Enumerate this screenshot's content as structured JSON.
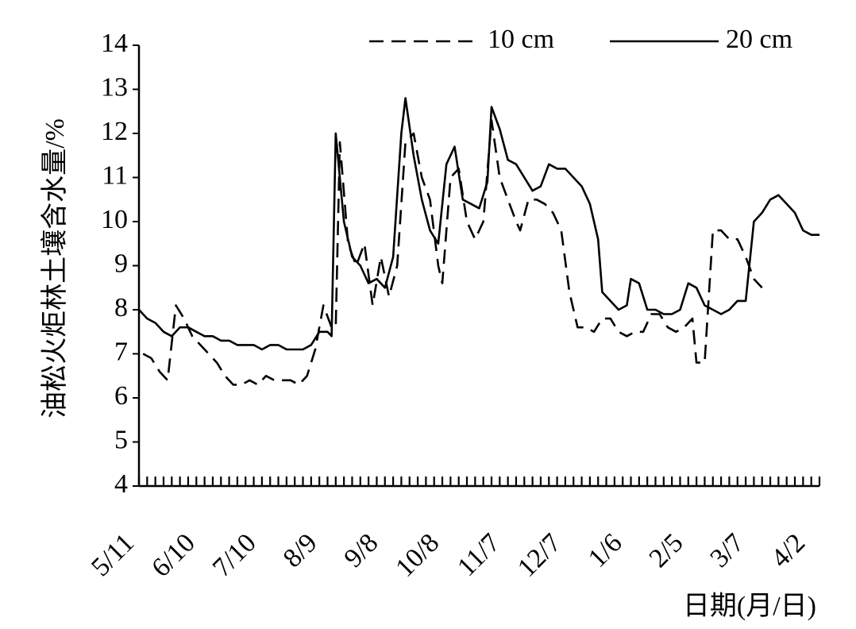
{
  "chart_data": {
    "type": "line",
    "title": "",
    "xlabel": "日期(月/日)",
    "ylabel": "油松火炬林土壤含水量/%",
    "ylim": [
      4,
      14
    ],
    "yticks": [
      "4",
      "5",
      "6",
      "7",
      "8",
      "9",
      "10",
      "11",
      "12",
      "13",
      "14"
    ],
    "xtick_labels": [
      "5/11",
      "6/10",
      "7/10",
      "8/9",
      "9/8",
      "10/8",
      "11/7",
      "12/7",
      "1/6",
      "2/5",
      "3/7",
      "4/2"
    ],
    "grid": false,
    "legend_position": "top",
    "series": [
      {
        "name": "10 cm",
        "style": "dashed",
        "color": "#000000",
        "points": [
          [
            1,
            7.0
          ],
          [
            3,
            6.9
          ],
          [
            5,
            6.6
          ],
          [
            7,
            6.4
          ],
          [
            9,
            8.1
          ],
          [
            11,
            7.8
          ],
          [
            13,
            7.4
          ],
          [
            15,
            7.2
          ],
          [
            17,
            7.0
          ],
          [
            19,
            6.8
          ],
          [
            21,
            6.5
          ],
          [
            23,
            6.3
          ],
          [
            25,
            6.3
          ],
          [
            27,
            6.4
          ],
          [
            29,
            6.3
          ],
          [
            31,
            6.5
          ],
          [
            33,
            6.4
          ],
          [
            35,
            6.4
          ],
          [
            37,
            6.4
          ],
          [
            39,
            6.3
          ],
          [
            41,
            6.5
          ],
          [
            43,
            7.1
          ],
          [
            45,
            8.1
          ],
          [
            47,
            7.6
          ],
          [
            48,
            7.6
          ],
          [
            49,
            11.8
          ],
          [
            51,
            9.5
          ],
          [
            53,
            9.0
          ],
          [
            55,
            9.5
          ],
          [
            57,
            8.1
          ],
          [
            59,
            9.2
          ],
          [
            61,
            8.3
          ],
          [
            63,
            9.0
          ],
          [
            65,
            11.8
          ],
          [
            67,
            12.0
          ],
          [
            69,
            11.0
          ],
          [
            71,
            10.5
          ],
          [
            73,
            9.0
          ],
          [
            74,
            8.6
          ],
          [
            76,
            11.0
          ],
          [
            78,
            11.2
          ],
          [
            80,
            10.0
          ],
          [
            82,
            9.6
          ],
          [
            84,
            10.0
          ],
          [
            86,
            12.3
          ],
          [
            88,
            11.0
          ],
          [
            90,
            10.5
          ],
          [
            92,
            10.0
          ],
          [
            93,
            9.8
          ],
          [
            95,
            10.5
          ],
          [
            97,
            10.5
          ],
          [
            99,
            10.4
          ],
          [
            101,
            10.2
          ],
          [
            103,
            9.8
          ],
          [
            105,
            8.4
          ],
          [
            107,
            7.6
          ],
          [
            109,
            7.6
          ],
          [
            111,
            7.5
          ],
          [
            113,
            7.8
          ],
          [
            115,
            7.8
          ],
          [
            117,
            7.5
          ],
          [
            119,
            7.4
          ],
          [
            121,
            7.5
          ],
          [
            123,
            7.5
          ],
          [
            125,
            7.9
          ],
          [
            127,
            7.9
          ],
          [
            129,
            7.6
          ],
          [
            131,
            7.5
          ],
          [
            133,
            7.6
          ],
          [
            135,
            7.8
          ],
          [
            136,
            6.8
          ],
          [
            138,
            6.8
          ],
          [
            140,
            9.8
          ],
          [
            142,
            9.8
          ],
          [
            144,
            9.6
          ],
          [
            146,
            9.6
          ],
          [
            148,
            9.2
          ],
          [
            150,
            8.7
          ],
          [
            152,
            8.5
          ]
        ]
      },
      {
        "name": "20 cm",
        "style": "solid",
        "color": "#000000",
        "points": [
          [
            0,
            8.0
          ],
          [
            2,
            7.8
          ],
          [
            4,
            7.7
          ],
          [
            6,
            7.5
          ],
          [
            8,
            7.4
          ],
          [
            10,
            7.6
          ],
          [
            12,
            7.6
          ],
          [
            14,
            7.5
          ],
          [
            16,
            7.4
          ],
          [
            18,
            7.4
          ],
          [
            20,
            7.3
          ],
          [
            22,
            7.3
          ],
          [
            24,
            7.2
          ],
          [
            26,
            7.2
          ],
          [
            28,
            7.2
          ],
          [
            30,
            7.1
          ],
          [
            32,
            7.2
          ],
          [
            34,
            7.2
          ],
          [
            36,
            7.1
          ],
          [
            38,
            7.1
          ],
          [
            40,
            7.1
          ],
          [
            42,
            7.2
          ],
          [
            44,
            7.5
          ],
          [
            46,
            7.5
          ],
          [
            47,
            7.4
          ],
          [
            48,
            12.0
          ],
          [
            50,
            10.0
          ],
          [
            52,
            9.2
          ],
          [
            54,
            9.0
          ],
          [
            56,
            8.6
          ],
          [
            58,
            8.7
          ],
          [
            60,
            8.5
          ],
          [
            62,
            9.2
          ],
          [
            64,
            12.0
          ],
          [
            65,
            12.8
          ],
          [
            67,
            11.5
          ],
          [
            69,
            10.5
          ],
          [
            71,
            9.8
          ],
          [
            73,
            9.5
          ],
          [
            75,
            11.3
          ],
          [
            77,
            11.7
          ],
          [
            79,
            10.5
          ],
          [
            81,
            10.4
          ],
          [
            83,
            10.3
          ],
          [
            85,
            10.9
          ],
          [
            86,
            12.6
          ],
          [
            88,
            12.1
          ],
          [
            90,
            11.4
          ],
          [
            92,
            11.3
          ],
          [
            94,
            11.0
          ],
          [
            96,
            10.7
          ],
          [
            98,
            10.8
          ],
          [
            100,
            11.3
          ],
          [
            102,
            11.2
          ],
          [
            104,
            11.2
          ],
          [
            106,
            11.0
          ],
          [
            108,
            10.8
          ],
          [
            110,
            10.4
          ],
          [
            112,
            9.6
          ],
          [
            113,
            8.4
          ],
          [
            115,
            8.2
          ],
          [
            117,
            8.0
          ],
          [
            119,
            8.1
          ],
          [
            120,
            8.7
          ],
          [
            122,
            8.6
          ],
          [
            124,
            8.0
          ],
          [
            126,
            8.0
          ],
          [
            128,
            7.9
          ],
          [
            130,
            7.9
          ],
          [
            132,
            8.0
          ],
          [
            134,
            8.6
          ],
          [
            136,
            8.5
          ],
          [
            138,
            8.1
          ],
          [
            140,
            8.0
          ],
          [
            142,
            7.9
          ],
          [
            144,
            8.0
          ],
          [
            146,
            8.2
          ],
          [
            148,
            8.2
          ],
          [
            150,
            10.0
          ],
          [
            152,
            10.2
          ],
          [
            154,
            10.5
          ],
          [
            156,
            10.6
          ],
          [
            158,
            10.4
          ],
          [
            160,
            10.2
          ],
          [
            162,
            9.8
          ],
          [
            164,
            9.7
          ],
          [
            166,
            9.7
          ]
        ]
      }
    ]
  }
}
